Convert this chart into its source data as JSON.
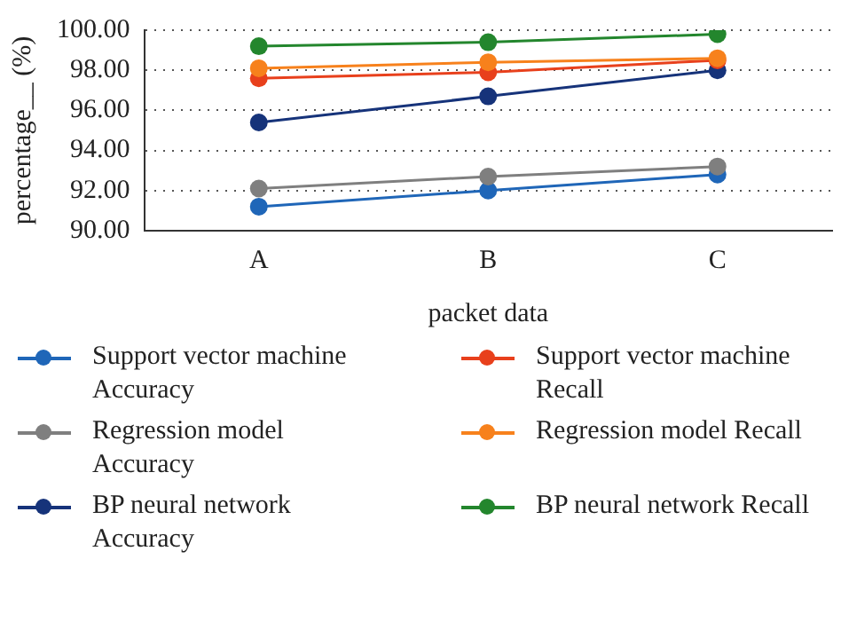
{
  "chart_data": {
    "type": "line",
    "xlabel": "packet data",
    "ylabel": "percentage__ (%)",
    "categories": [
      "A",
      "B",
      "C"
    ],
    "series": [
      {
        "name": "Support vector machine Accuracy",
        "color": "#1f66b8",
        "values": [
          91.2,
          92.0,
          92.8
        ]
      },
      {
        "name": "Regression model Accuracy",
        "color": "#7f7f7f",
        "values": [
          92.1,
          92.7,
          93.2
        ]
      },
      {
        "name": "BP neural network Accuracy",
        "color": "#16337a",
        "values": [
          95.4,
          96.7,
          98.0
        ]
      },
      {
        "name": "Support vector machine Recall",
        "color": "#e8401c",
        "values": [
          97.6,
          97.9,
          98.5
        ]
      },
      {
        "name": "Regression model Recall",
        "color": "#f7811c",
        "values": [
          98.1,
          98.4,
          98.6
        ]
      },
      {
        "name": "BP neural network Recall",
        "color": "#23862d",
        "values": [
          99.2,
          99.4,
          99.8
        ]
      }
    ],
    "ylim": [
      90,
      100
    ],
    "yticks": [
      {
        "value": 90,
        "label": "90.00"
      },
      {
        "value": 92,
        "label": "92.00"
      },
      {
        "value": 94,
        "label": "94.00"
      },
      {
        "value": 96,
        "label": "96.00"
      },
      {
        "value": 98,
        "label": "98.00"
      },
      {
        "value": 100,
        "label": "100.00"
      }
    ],
    "grid": "y",
    "legend": "bottom",
    "marker": "circle",
    "line_style": "solid"
  }
}
